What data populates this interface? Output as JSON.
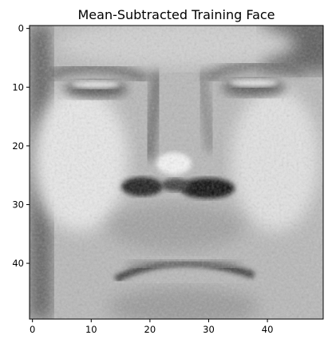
{
  "figure": {
    "title": "Mean-Subtracted Training Face",
    "image_description": "grayscale mean-subtracted face image, 50x50 pixels",
    "colormap": "gray",
    "axes": {
      "x_ticks": [
        "0",
        "10",
        "20",
        "30",
        "40"
      ],
      "y_ticks": [
        "0",
        "10",
        "20",
        "30",
        "40"
      ],
      "x_tick_values": [
        0,
        10,
        20,
        30,
        40
      ],
      "y_tick_values": [
        0,
        10,
        20,
        30,
        40
      ],
      "xlim": [
        -0.5,
        49.5
      ],
      "ylim": [
        49.5,
        -0.5
      ]
    }
  }
}
